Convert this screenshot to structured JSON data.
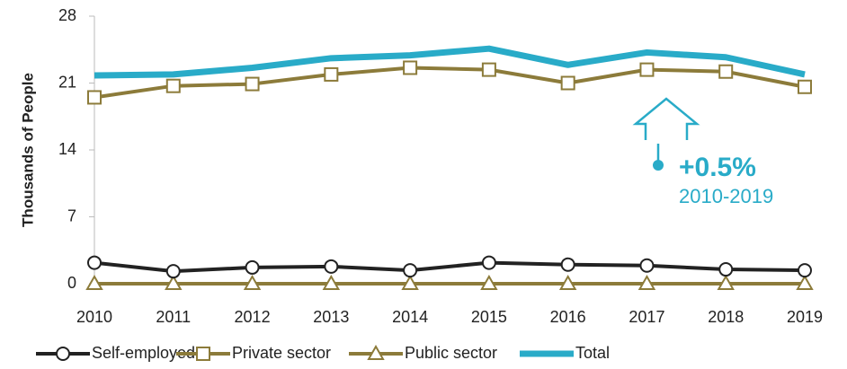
{
  "chart_data": {
    "type": "line",
    "y_label": "Thousands of People",
    "categories": [
      "2010",
      "2011",
      "2012",
      "2013",
      "2014",
      "2015",
      "2016",
      "2017",
      "2018",
      "2019"
    ],
    "series": [
      {
        "name": "Self-employed",
        "color": "#222222",
        "marker": "circle",
        "values": [
          2.2,
          1.3,
          1.7,
          1.8,
          1.4,
          2.2,
          2.0,
          1.9,
          1.5,
          1.4
        ]
      },
      {
        "name": "Private sector",
        "color": "#8c7b3a",
        "marker": "square",
        "values": [
          19.5,
          20.7,
          20.9,
          21.9,
          22.6,
          22.4,
          21.0,
          22.4,
          22.2,
          20.6
        ]
      },
      {
        "name": "Public sector",
        "color": "#8c7b3a",
        "marker": "triangle",
        "values": [
          0,
          0,
          0,
          0,
          0,
          0,
          0,
          0,
          0,
          0
        ]
      },
      {
        "name": "Total",
        "color": "#29abc8",
        "marker": "none",
        "values": [
          21.8,
          21.9,
          22.6,
          23.6,
          23.9,
          24.6,
          22.9,
          24.2,
          23.7,
          21.9
        ]
      }
    ],
    "ylim": [
      0,
      28
    ],
    "yticks": [
      0,
      7,
      14,
      21,
      28
    ],
    "annotation": {
      "value": "+0.5%",
      "period": "2010-2019",
      "color": "#29abc8"
    }
  }
}
